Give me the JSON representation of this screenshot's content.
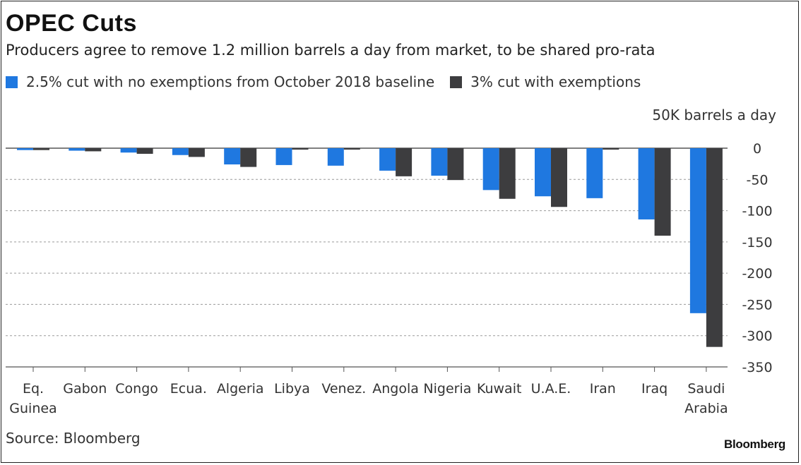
{
  "title": "OPEC Cuts",
  "subtitle": "Producers agree to remove 1.2 million barrels a day from market, to be shared pro-rata",
  "unit_label": "50K barrels a day",
  "source": "Source: Bloomberg",
  "logo": "Bloomberg",
  "colors": {
    "series1": "#1f78e0",
    "series2": "#3d3d3f",
    "grid": "#9a9a9a"
  },
  "chart_data": {
    "type": "bar",
    "categories": [
      [
        "Eq.",
        "Guinea"
      ],
      [
        "Gabon"
      ],
      [
        "Congo"
      ],
      [
        "Ecua."
      ],
      [
        "Algeria"
      ],
      [
        "Libya"
      ],
      [
        "Venez."
      ],
      [
        "Angola"
      ],
      [
        "Nigeria"
      ],
      [
        "Kuwait"
      ],
      [
        "U.A.E."
      ],
      [
        "Iran"
      ],
      [
        "Iraq"
      ],
      [
        "Saudi",
        "Arabia"
      ]
    ],
    "series": [
      {
        "name": "2.5% cut with no exemptions from October 2018 baseline",
        "values": [
          -3,
          -4,
          -7,
          -11,
          -26,
          -27,
          -28,
          -36,
          -44,
          -67,
          -77,
          -80,
          -114,
          -264
        ]
      },
      {
        "name": "3% cut with exemptions",
        "values": [
          -3,
          -5,
          -9,
          -14,
          -30,
          0,
          0,
          -45,
          -51,
          -81,
          -94,
          0,
          -140,
          -318
        ]
      }
    ],
    "y_ticks": [
      "0",
      "-50",
      "-100",
      "-150",
      "-200",
      "-250",
      "-300",
      "-350"
    ],
    "y_tick_values": [
      0,
      -50,
      -100,
      -150,
      -200,
      -250,
      -300,
      -350
    ],
    "ylim": [
      -350,
      0
    ],
    "grid": true,
    "legend_position": "top-left"
  }
}
